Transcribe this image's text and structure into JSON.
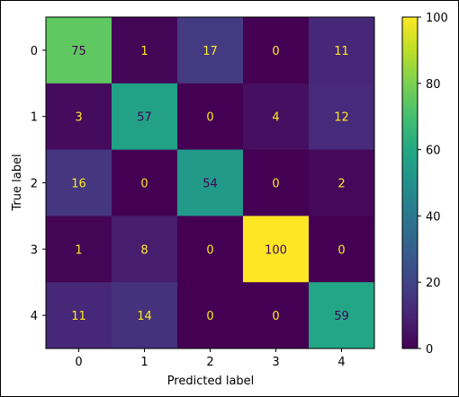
{
  "chart_data": {
    "type": "heatmap",
    "title": "",
    "xlabel": "Predicted label",
    "ylabel": "True label",
    "x_categories": [
      "0",
      "1",
      "2",
      "3",
      "4"
    ],
    "y_categories": [
      "0",
      "1",
      "2",
      "3",
      "4"
    ],
    "values": [
      [
        75,
        1,
        17,
        0,
        11
      ],
      [
        3,
        57,
        0,
        4,
        12
      ],
      [
        16,
        0,
        54,
        0,
        2
      ],
      [
        1,
        8,
        0,
        100,
        0
      ],
      [
        11,
        14,
        0,
        0,
        59
      ]
    ],
    "colormap": "viridis",
    "vmin": 0,
    "vmax": 100,
    "colorbar_ticks": [
      0,
      20,
      40,
      60,
      80,
      100
    ],
    "text_color_dark": "#440154",
    "text_color_light": "#fde725",
    "text_color_threshold": 50,
    "grid": false
  }
}
